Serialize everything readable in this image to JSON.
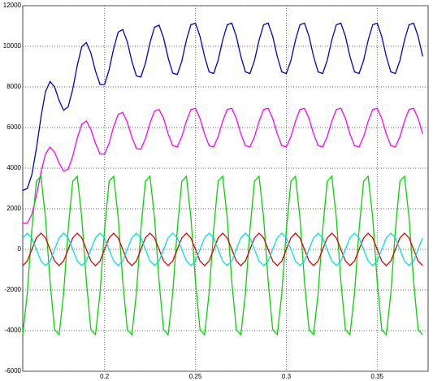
{
  "chart_data": {
    "type": "line",
    "x": [
      0.155,
      0.1575,
      0.16,
      0.1625,
      0.165,
      0.1675,
      0.17,
      0.1725,
      0.175,
      0.1775,
      0.18,
      0.1825,
      0.185,
      0.1875,
      0.19,
      0.1925,
      0.195,
      0.1975,
      0.2,
      0.2025,
      0.205,
      0.2075,
      0.21,
      0.2125,
      0.215,
      0.2175,
      0.22,
      0.2225,
      0.225,
      0.2275,
      0.23,
      0.2325,
      0.235,
      0.2375,
      0.24,
      0.2425,
      0.245,
      0.2475,
      0.25,
      0.2525,
      0.255,
      0.2575,
      0.26,
      0.2625,
      0.265,
      0.2675,
      0.27,
      0.2725,
      0.275,
      0.2775,
      0.28,
      0.2825,
      0.285,
      0.2875,
      0.29,
      0.2925,
      0.295,
      0.2975,
      0.3,
      0.3025,
      0.305,
      0.3075,
      0.31,
      0.3125,
      0.315,
      0.3175,
      0.32,
      0.3225,
      0.325,
      0.3275,
      0.33,
      0.3325,
      0.335,
      0.3375,
      0.34,
      0.3425,
      0.345,
      0.3475,
      0.35,
      0.3525,
      0.355,
      0.3575,
      0.36,
      0.3625,
      0.365,
      0.3675,
      0.37,
      0.3725,
      0.375
    ],
    "series": [
      {
        "color": "#0000c8",
        "values": [
          2900,
          3000,
          3670,
          4960,
          6510,
          7770,
          8270,
          8000,
          7330,
          6850,
          7020,
          7880,
          9060,
          9980,
          10190,
          9670,
          8790,
          8120,
          8120,
          8840,
          9890,
          10700,
          10830,
          10220,
          9260,
          8540,
          8490,
          9160,
          10170,
          10940,
          11040,
          10410,
          9430,
          8680,
          8610,
          9270,
          10300,
          11060,
          11140,
          10490,
          9500,
          8740,
          8660,
          9310,
          10300,
          11060,
          11140,
          10490,
          9500,
          8740,
          8660,
          9310,
          10300,
          11060,
          11140,
          10490,
          9500,
          8740,
          8660,
          9310,
          10300,
          11060,
          11140,
          10490,
          9500,
          8740,
          8660,
          9310,
          10300,
          11060,
          11140,
          10490,
          9500,
          8740,
          8660,
          9310,
          10300,
          11060,
          11140,
          10490,
          9500,
          8740,
          8660,
          9310,
          10300,
          11060,
          11140,
          10490,
          9500
        ]
      },
      {
        "color": "#ff00ff",
        "values": [
          1290,
          1280,
          1720,
          2650,
          3780,
          4700,
          5040,
          4790,
          4240,
          3850,
          3950,
          4590,
          5480,
          6170,
          6320,
          5910,
          5220,
          4700,
          4690,
          5230,
          6040,
          6650,
          6740,
          6270,
          5530,
          4970,
          4930,
          5450,
          6220,
          6810,
          6890,
          6450,
          5690,
          5110,
          5050,
          5550,
          6310,
          6890,
          6950,
          6450,
          5690,
          5110,
          5050,
          5550,
          6310,
          6890,
          6950,
          6450,
          5690,
          5110,
          5050,
          5550,
          6310,
          6890,
          6950,
          6450,
          5690,
          5110,
          5050,
          5550,
          6310,
          6890,
          6950,
          6450,
          5690,
          5110,
          5050,
          5550,
          6310,
          6890,
          6950,
          6450,
          5690,
          5110,
          5050,
          5550,
          6310,
          6890,
          6950,
          6450,
          5690,
          5110,
          5050,
          5550,
          6310,
          6890,
          6950,
          6450,
          5690
        ]
      },
      {
        "color": "#00d800",
        "values": [
          -4200,
          -2160,
          970,
          3350,
          3600,
          1560,
          -1570,
          -3950,
          -4200,
          -2160,
          970,
          3350,
          3600,
          1560,
          -1570,
          -3950,
          -4200,
          -2160,
          970,
          3350,
          3600,
          1560,
          -1570,
          -3950,
          -4200,
          -2160,
          970,
          3350,
          3600,
          1560,
          -1570,
          -3950,
          -4200,
          -2160,
          970,
          3350,
          3600,
          1560,
          -1570,
          -3950,
          -4200,
          -2160,
          970,
          3350,
          3600,
          1560,
          -1570,
          -3950,
          -4200,
          -2160,
          970,
          3350,
          3600,
          1560,
          -1570,
          -3950,
          -4200,
          -2160,
          970,
          3350,
          3600,
          1560,
          -1570,
          -3950,
          -4200,
          -2160,
          970,
          3350,
          3600,
          1560,
          -1570,
          -3950,
          -4200,
          -2160,
          970,
          3350,
          3600,
          1560,
          -1570,
          -3950,
          -4200,
          -2160,
          970,
          3350,
          3600,
          1560,
          -1570,
          -3950,
          -4200
        ]
      },
      {
        "color": "#e00000",
        "values": [
          -800,
          -570,
          0,
          570,
          800,
          570,
          0,
          -570,
          -800,
          -570,
          0,
          570,
          800,
          570,
          0,
          -570,
          -800,
          -570,
          0,
          570,
          800,
          570,
          0,
          -570,
          -800,
          -570,
          0,
          570,
          800,
          570,
          0,
          -570,
          -800,
          -570,
          0,
          570,
          800,
          570,
          0,
          -570,
          -800,
          -570,
          0,
          570,
          800,
          570,
          0,
          -570,
          -800,
          -570,
          0,
          570,
          800,
          570,
          0,
          -570,
          -800,
          -570,
          0,
          570,
          800,
          570,
          0,
          -570,
          -800,
          -570,
          0,
          570,
          800,
          570,
          0,
          -570,
          -800,
          -570,
          0,
          570,
          800,
          570,
          0,
          -570,
          -800,
          -570,
          0,
          570,
          800,
          570,
          0,
          -570,
          -800
        ]
      },
      {
        "color": "#00e0e0",
        "values": [
          570,
          800,
          570,
          0,
          -570,
          -800,
          -570,
          0,
          570,
          800,
          570,
          0,
          -570,
          -800,
          -570,
          0,
          570,
          800,
          570,
          0,
          -570,
          -800,
          -570,
          0,
          570,
          800,
          570,
          0,
          -570,
          -800,
          -570,
          0,
          570,
          800,
          570,
          0,
          -570,
          -800,
          -570,
          0,
          570,
          800,
          570,
          0,
          -570,
          -800,
          -570,
          0,
          570,
          800,
          570,
          0,
          -570,
          -800,
          -570,
          0,
          570,
          800,
          570,
          0,
          -570,
          -800,
          -570,
          0,
          570,
          800,
          570,
          0,
          -570,
          -800,
          -570,
          0,
          570,
          800,
          570,
          0,
          -570,
          -800,
          -570,
          0,
          570,
          800,
          570,
          0,
          -570,
          -800,
          -570,
          0,
          570
        ]
      }
    ],
    "xlim": [
      0.155,
      0.378
    ],
    "xticks": [
      0.2,
      0.25,
      0.3,
      0.35
    ],
    "ylim": [
      -6000,
      12000
    ],
    "yticks": [
      -6000,
      -4000,
      -2000,
      0,
      2000,
      4000,
      6000,
      8000,
      10000,
      12000
    ],
    "grid": true
  }
}
